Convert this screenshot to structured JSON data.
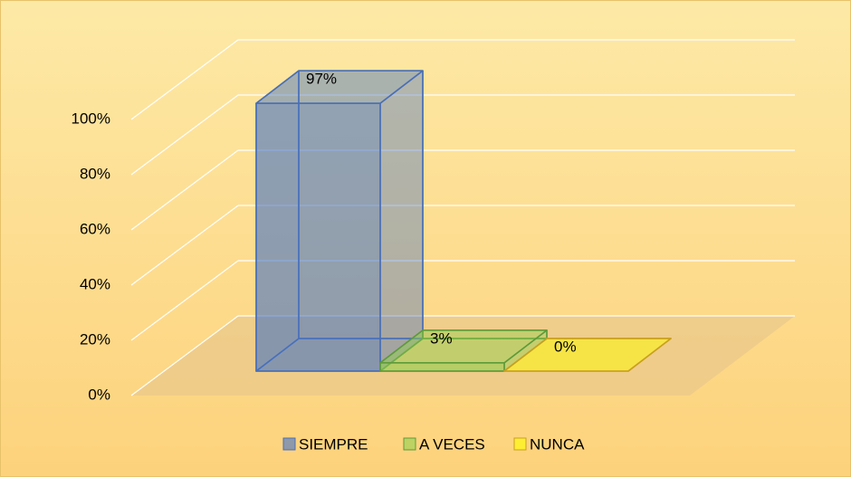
{
  "chart_data": {
    "type": "bar3d",
    "categories": [
      null
    ],
    "series": [
      {
        "name": "SIEMPRE",
        "color": "#4472c4",
        "values": [
          97
        ],
        "value_labels": [
          "97%"
        ]
      },
      {
        "name": "A VECES",
        "color": "#92d050",
        "values": [
          3
        ],
        "value_labels": [
          "3%"
        ]
      },
      {
        "name": "NUNCA",
        "color": "#ffff00",
        "values": [
          0
        ],
        "value_labels": [
          "0%"
        ]
      }
    ],
    "ylim": [
      0,
      100
    ],
    "yticks": [
      {
        "value": 0,
        "label": "0%"
      },
      {
        "value": 20,
        "label": "20%"
      },
      {
        "value": 40,
        "label": "40%"
      },
      {
        "value": 60,
        "label": "60%"
      },
      {
        "value": 80,
        "label": "80%"
      },
      {
        "value": 100,
        "label": "100%"
      }
    ],
    "grid": true,
    "legend": "bottom"
  }
}
